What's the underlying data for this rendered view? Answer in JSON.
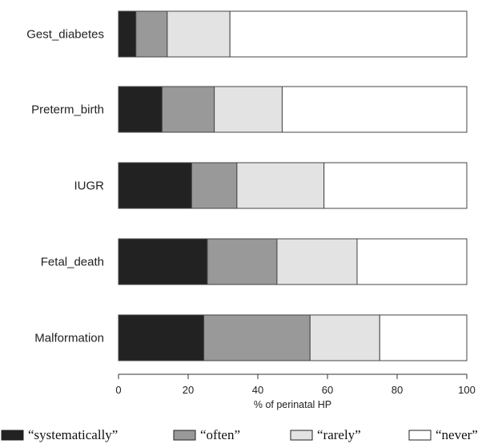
{
  "chart_data": {
    "type": "bar",
    "orientation": "horizontal",
    "stacked": true,
    "categories": [
      "Gest_diabetes",
      "Preterm_birth",
      "IUGR",
      "Fetal_death",
      "Malformation"
    ],
    "series": [
      {
        "name": "“systematically”",
        "values": [
          5,
          12.5,
          21,
          25.5,
          24.5
        ],
        "color": "#222222"
      },
      {
        "name": "“often”",
        "values": [
          9,
          15,
          13,
          20,
          30.5
        ],
        "color": "#999999"
      },
      {
        "name": "“rarely”",
        "values": [
          18,
          19.5,
          25,
          23,
          20
        ],
        "color": "#e3e3e3"
      },
      {
        "name": "“never”",
        "values": [
          68,
          53,
          41,
          31.5,
          25
        ],
        "color": "#ffffff"
      }
    ],
    "xlabel": "% of perinatal HP",
    "ylabel": "",
    "xlim": [
      0,
      100
    ],
    "xticks": [
      0,
      20,
      40,
      60,
      80,
      100
    ],
    "grid": false,
    "legend_position": "bottom"
  }
}
